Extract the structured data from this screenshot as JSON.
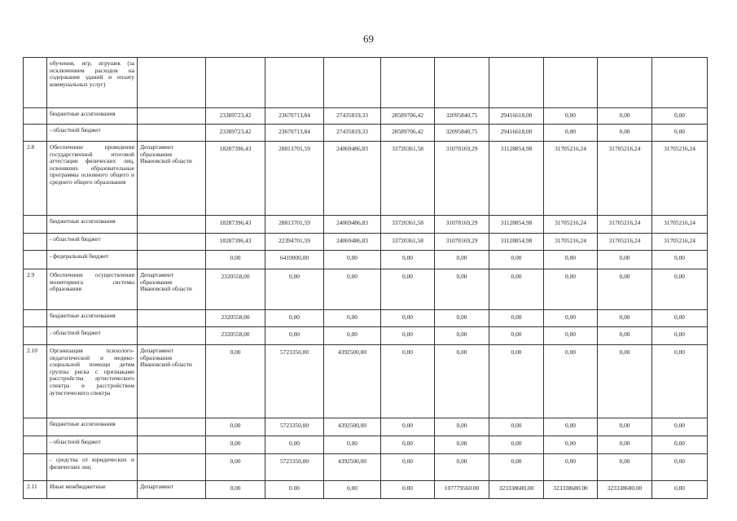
{
  "page_number": "69",
  "rows": [
    {
      "code": "",
      "desc": "обучения, игр, игрушек (за исключением расходов на содержание зданий и оплату коммунальных услуг)",
      "exec": "",
      "values": [
        "",
        "",
        "",
        "",
        "",
        "",
        "",
        "",
        ""
      ],
      "h": 62
    },
    {
      "code": "",
      "desc": "бюджетные ассигнования",
      "exec": "",
      "values": [
        "23389723,42",
        "23670713,84",
        "27435819,33",
        "28589706,42",
        "32095840,75",
        "29416618,00",
        "0,00",
        "0,00",
        "0,00"
      ],
      "h": 20
    },
    {
      "code": "",
      "desc": "- областной бюджет",
      "exec": "",
      "values": [
        "23389723,42",
        "23670713,84",
        "27435819,33",
        "28589706,42",
        "32095840,75",
        "29416618,00",
        "0,00",
        "0,00",
        "0,00"
      ],
      "h": 21
    },
    {
      "code": "2.8",
      "desc": "Обеспечение проведения государственной итоговой аттестации физических лиц, освоивших образовательные программы основного общего и среднего общего образования",
      "exec": "Департамент образования Ивановской области",
      "values": [
        "18287396,43",
        "28813701,59",
        "24069486,83",
        "33720361,58",
        "31078169,29",
        "31128854,98",
        "31705216,24",
        "31705216,24",
        "31705216,24"
      ],
      "h": 91
    },
    {
      "code": "",
      "desc": "бюджетные ассигнования",
      "exec": "",
      "values": [
        "18287396,43",
        "28813701,59",
        "24069486,83",
        "33720361,58",
        "31078169,29",
        "31128854,98",
        "31705216,24",
        "31705216,24",
        "31705216,24"
      ],
      "h": 22
    },
    {
      "code": "",
      "desc": "- областной бюджет",
      "exec": "",
      "values": [
        "18287396,43",
        "22394701,59",
        "24069486,83",
        "33720361,58",
        "31078169,29",
        "31128854,98",
        "31705216,24",
        "31705216,24",
        "31705216,24"
      ],
      "h": 21
    },
    {
      "code": "",
      "desc": "- федеральный бюджет",
      "exec": "",
      "values": [
        "0,00",
        "6419000,00",
        "0,00",
        "0,00",
        "0,00",
        "0,00",
        "0,00",
        "0,00",
        "0,00"
      ],
      "h": 23
    },
    {
      "code": "2.9",
      "desc": "Обеспечение осуществления мониторинга системы образования",
      "exec": "Департамент образования Ивановской области",
      "values": [
        "2320558,00",
        "0,00",
        "0,00",
        "0,00",
        "0,00",
        "0,00",
        "0,00",
        "0,00",
        "0,00"
      ],
      "h": 50
    },
    {
      "code": "",
      "desc": "бюджетные ассигнования",
      "exec": "",
      "values": [
        "2320558,00",
        "0,00",
        "0,00",
        "0,00",
        "0,00",
        "0,00",
        "0,00",
        "0,00",
        "0,00"
      ],
      "h": 21
    },
    {
      "code": "",
      "desc": "- областной бюджет",
      "exec": "",
      "values": [
        "2320558,00",
        "0,00",
        "0,00",
        "0,00",
        "0,00",
        "0,00",
        "0,00",
        "0,00",
        "0,00"
      ],
      "h": 22
    },
    {
      "code": "2.10",
      "desc": "Организация психолого-педагогической и медико-социальной помощи детям группы риска с признаками расстройства аутистического спектра и расстройством аутистического спектра",
      "exec": "Департамент образования Ивановской области",
      "values": [
        "0,00",
        "5723350,00",
        "4392500,00",
        "0,00",
        "0,00",
        "0,00",
        "0,00",
        "0,00",
        "0,00"
      ],
      "h": 90
    },
    {
      "code": "",
      "desc": "бюджетные ассигнования",
      "exec": "",
      "values": [
        "0,00",
        "5723350,00",
        "4392500,00",
        "0,00",
        "0,00",
        "0,00",
        "0,00",
        "0,00",
        "0,00"
      ],
      "h": 22
    },
    {
      "code": "",
      "desc": "- областной бюджет",
      "exec": "",
      "values": [
        "0,00",
        "0,00",
        "0,00",
        "0,00",
        "0,00",
        "0,00",
        "0,00",
        "0,00",
        "0,00"
      ],
      "h": 22
    },
    {
      "code": "",
      "desc": "- средства от юридических и физических лиц",
      "exec": "",
      "values": [
        "0,00",
        "5723350,00",
        "4392500,00",
        "0,00",
        "0,00",
        "0,00",
        "0,00",
        "0,00",
        "0,00"
      ],
      "h": 33
    },
    {
      "code": "2.11",
      "desc": "Иные межбюджетные",
      "exec": "Департамент",
      "values": [
        "0,00",
        "0.00",
        "0,00",
        "0.00",
        "107779560.00",
        "323338680,00",
        "323338680.00",
        "323338680.00",
        "0,00"
      ],
      "h": 22
    }
  ]
}
